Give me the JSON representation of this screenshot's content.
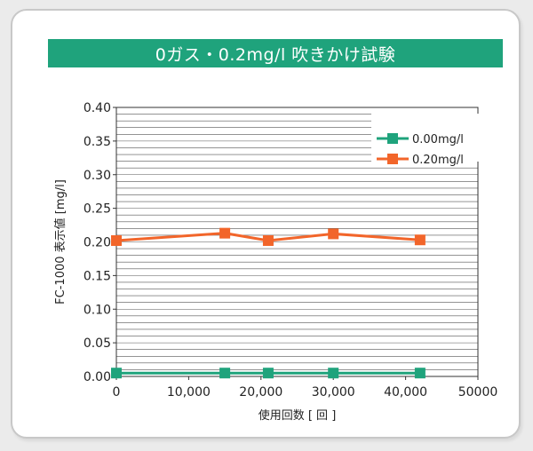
{
  "chart_data": {
    "type": "line",
    "title": "0ガス・0.2mg/l 吹きかけ試験",
    "xlabel": "使用回数 [ 回 ]",
    "ylabel": "FC-1000 表示値 [mg/l]",
    "xlim": [
      0,
      50000
    ],
    "ylim": [
      0,
      0.4
    ],
    "xticks": [
      0,
      10000,
      20000,
      30000,
      40000,
      50000
    ],
    "xtick_labels": [
      "0",
      "10,000",
      "20,000",
      "30,000",
      "40,000",
      "50000"
    ],
    "yticks": [
      0,
      0.05,
      0.1,
      0.15,
      0.2,
      0.25,
      0.3,
      0.35,
      0.4
    ],
    "ytick_labels": [
      "0.00",
      "0.05",
      "0.10",
      "0.15",
      "0.20",
      "0.25",
      "0.30",
      "0.35",
      "0.40"
    ],
    "grid": "horizontal",
    "legend_position": "top-right",
    "series": [
      {
        "name": "0.00mg/l",
        "color": "#1fa37c",
        "marker": "square",
        "x": [
          0,
          15000,
          21000,
          30000,
          42000
        ],
        "y": [
          0.005,
          0.005,
          0.005,
          0.005,
          0.005
        ]
      },
      {
        "name": "0.20mg/l",
        "color": "#f2652a",
        "marker": "square",
        "x": [
          0,
          15000,
          21000,
          30000,
          42000
        ],
        "y": [
          0.202,
          0.213,
          0.202,
          0.212,
          0.203
        ]
      }
    ]
  }
}
